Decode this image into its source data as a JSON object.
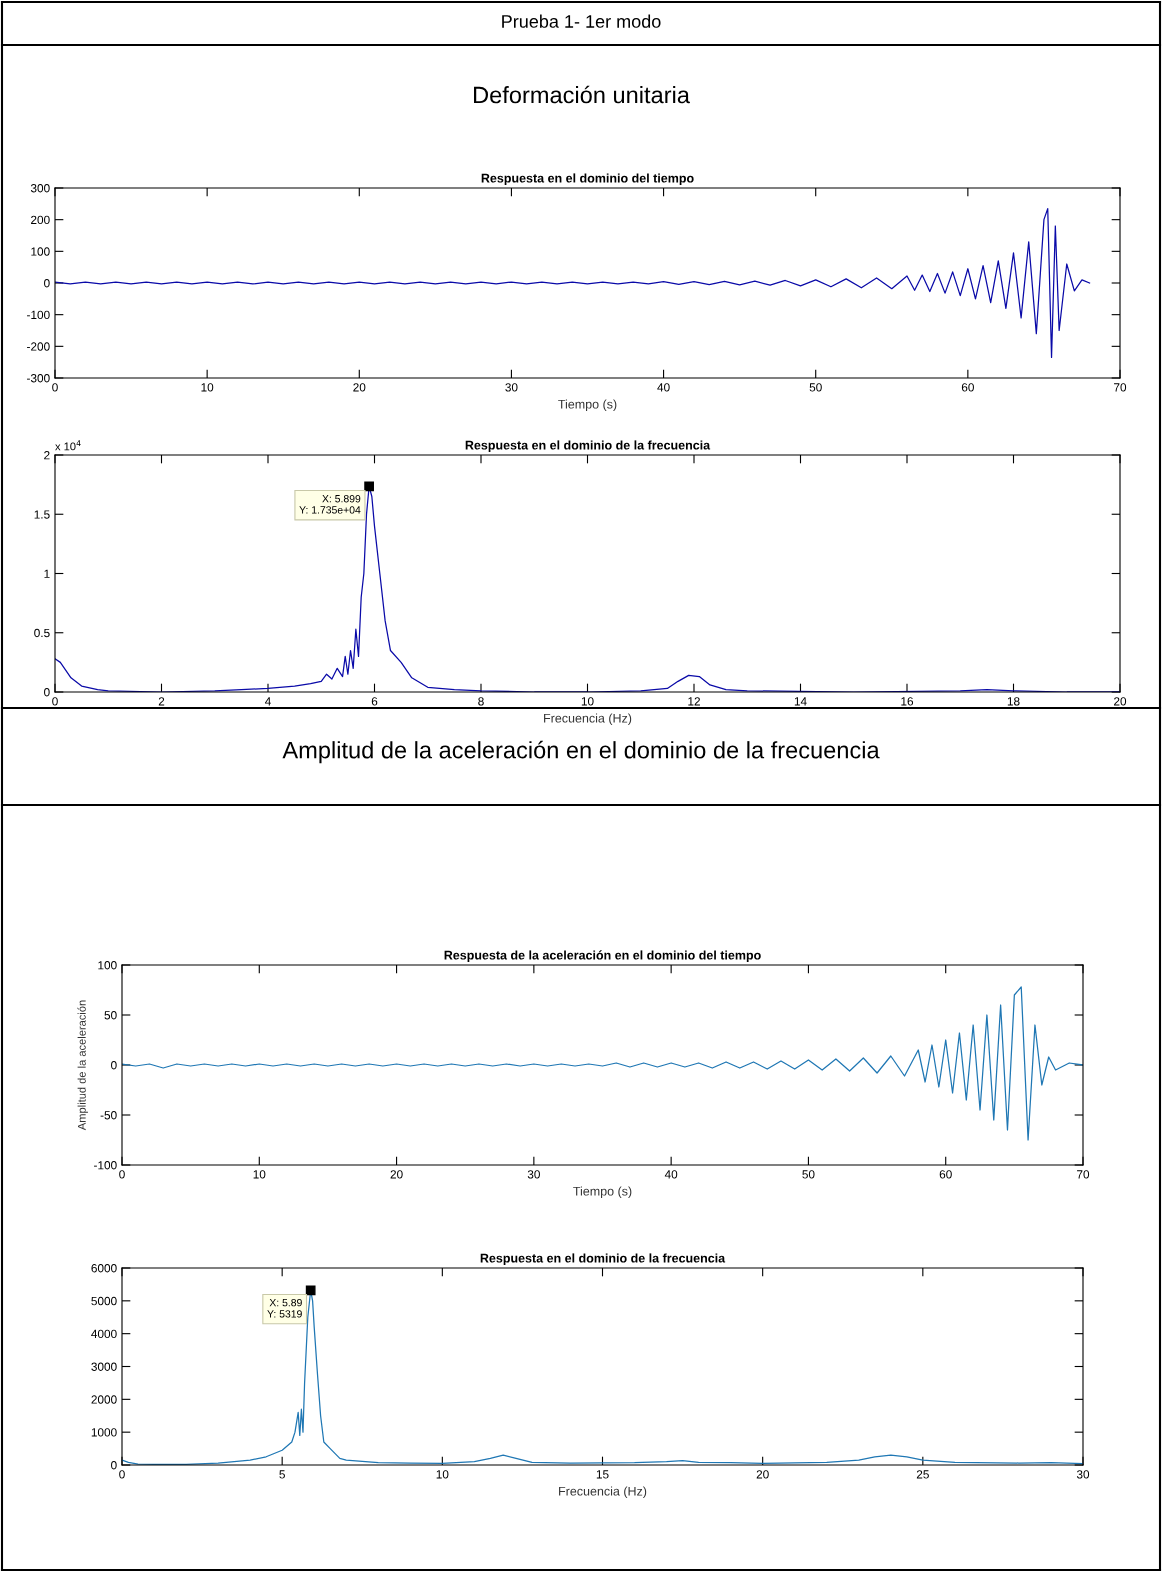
{
  "chart_data": [
    {
      "type": "line",
      "title": "Respuesta en el dominio del tiempo",
      "xlabel": "Tiempo (s)",
      "annotations": [
        "Prueba 1- 1er modo",
        "Deformación unitaria"
      ],
      "xlim": [
        0,
        70
      ],
      "ylim": [
        -300,
        300
      ],
      "xticks": [
        0,
        10,
        20,
        30,
        40,
        50,
        60,
        70
      ],
      "yticks": [
        -300,
        -200,
        -100,
        0,
        100,
        200,
        300
      ],
      "series": [
        {
          "color": "#0a0aa8",
          "x": [
            0,
            1,
            2,
            3,
            4,
            5,
            6,
            7,
            8,
            9,
            10,
            11,
            12,
            13,
            14,
            15,
            16,
            17,
            18,
            19,
            20,
            21,
            22,
            23,
            24,
            25,
            26,
            27,
            28,
            29,
            30,
            31,
            32,
            33,
            34,
            35,
            36,
            37,
            38,
            39,
            40,
            41,
            42,
            43,
            44,
            45,
            46,
            47,
            48,
            49,
            50,
            51,
            52,
            53,
            54,
            55,
            56,
            56.5,
            57,
            57.5,
            58,
            58.5,
            59,
            59.5,
            60,
            60.5,
            61,
            61.5,
            62,
            62.5,
            63,
            63.5,
            64,
            64.5,
            65,
            65.25,
            65.5,
            65.75,
            66,
            66.5,
            67,
            67.5,
            68
          ],
          "values": [
            3,
            -3,
            3,
            -3,
            3,
            -3,
            3,
            -3,
            3,
            -3,
            3,
            -3,
            3,
            -3,
            3,
            -3,
            3,
            -3,
            3,
            -3,
            3,
            -3,
            3,
            -3,
            3,
            -3,
            3,
            -3,
            3,
            -3,
            3,
            -3,
            3,
            -3,
            3,
            -3,
            3,
            -3,
            3,
            -3,
            4,
            -4,
            4,
            -5,
            5,
            -6,
            6,
            -7,
            8,
            -9,
            10,
            -12,
            13,
            -15,
            16,
            -18,
            22,
            -23,
            25,
            -27,
            30,
            -32,
            35,
            -40,
            45,
            -50,
            55,
            -62,
            70,
            -80,
            95,
            -110,
            130,
            -160,
            200,
            235,
            -235,
            180,
            -150,
            60,
            -25,
            10,
            0
          ]
        }
      ]
    },
    {
      "type": "line",
      "title": "Respuesta en el dominio de la frecuencia",
      "xlabel": "Frecuencia (Hz)",
      "annotations": [
        "x 10$^{4}$",
        {
          "text": "X: 5.899\nY: 1.735e+04",
          "x": 5.899,
          "y": 1.735
        }
      ],
      "xlim": [
        0,
        20
      ],
      "ylim": [
        0,
        2
      ],
      "xticks": [
        0,
        2,
        4,
        6,
        8,
        10,
        12,
        14,
        16,
        18,
        20
      ],
      "yticks": [
        0,
        0.5,
        1,
        1.5,
        2
      ],
      "series": [
        {
          "color": "#0a0aa8",
          "x": [
            0,
            0.1,
            0.3,
            0.5,
            0.8,
            1,
            2,
            3,
            3.5,
            4,
            4.5,
            4.8,
            5,
            5.1,
            5.2,
            5.3,
            5.4,
            5.45,
            5.5,
            5.55,
            5.6,
            5.65,
            5.7,
            5.75,
            5.8,
            5.85,
            5.899,
            5.95,
            6.0,
            6.1,
            6.2,
            6.3,
            6.5,
            6.7,
            7,
            7.5,
            8,
            9,
            10,
            11,
            11.5,
            11.7,
            11.9,
            12.1,
            12.3,
            12.6,
            13,
            15,
            17,
            17.5,
            18,
            19,
            20
          ],
          "values": [
            0.28,
            0.25,
            0.12,
            0.05,
            0.02,
            0.01,
            0,
            0.01,
            0.02,
            0.03,
            0.05,
            0.07,
            0.09,
            0.15,
            0.11,
            0.2,
            0.13,
            0.3,
            0.15,
            0.35,
            0.2,
            0.53,
            0.3,
            0.8,
            1,
            1.5,
            1.735,
            1.65,
            1.4,
            1,
            0.6,
            0.35,
            0.25,
            0.12,
            0.04,
            0.02,
            0.01,
            0,
            0,
            0.01,
            0.03,
            0.09,
            0.14,
            0.13,
            0.06,
            0.02,
            0.01,
            0,
            0.01,
            0.02,
            0.01,
            0,
            0
          ]
        }
      ]
    },
    {
      "type": "line",
      "title": "Respuesta de la aceleración en el dominio del tiempo",
      "xlabel": "Tiempo (s)",
      "ylabel": "Amplitud de la aceleración",
      "annotations": [
        "Amplitud de la aceleración en el dominio de la frecuencia"
      ],
      "xlim": [
        0,
        70
      ],
      "ylim": [
        -100,
        100
      ],
      "xticks": [
        0,
        10,
        20,
        30,
        40,
        50,
        60,
        70
      ],
      "yticks": [
        -100,
        -50,
        0,
        50,
        100
      ],
      "series": [
        {
          "color": "#1f77b4",
          "x": [
            0,
            1,
            2,
            3,
            4,
            5,
            6,
            7,
            8,
            9,
            10,
            11,
            12,
            13,
            14,
            15,
            16,
            17,
            18,
            19,
            20,
            21,
            22,
            23,
            24,
            25,
            26,
            27,
            28,
            29,
            30,
            31,
            32,
            33,
            34,
            35,
            36,
            37,
            38,
            39,
            40,
            41,
            42,
            43,
            44,
            45,
            46,
            47,
            48,
            49,
            50,
            51,
            52,
            53,
            54,
            55,
            56,
            57,
            58,
            58.5,
            59,
            59.5,
            60,
            60.5,
            61,
            61.5,
            62,
            62.5,
            63,
            63.5,
            64,
            64.5,
            65,
            65.5,
            66,
            66.5,
            67,
            67.5,
            68,
            69,
            70
          ],
          "values": [
            1,
            -1,
            1,
            -3,
            1,
            -1,
            1,
            -1,
            1,
            -1,
            1,
            -1,
            1,
            -1,
            1,
            -1,
            1,
            -1,
            1,
            -1,
            1,
            -1,
            1,
            -1,
            1,
            -1,
            1,
            -1,
            1,
            -1,
            1,
            -1,
            1,
            -1,
            1,
            -1,
            2,
            -2,
            2,
            -2,
            2,
            -2,
            2,
            -3,
            3,
            -3,
            3,
            -4,
            4,
            -4,
            5,
            -5,
            6,
            -6,
            7,
            -8,
            9,
            -11,
            15,
            -17,
            20,
            -22,
            25,
            -28,
            32,
            -35,
            40,
            -45,
            50,
            -55,
            60,
            -65,
            70,
            78,
            -75,
            40,
            -20,
            8,
            -5,
            2,
            0
          ]
        }
      ]
    },
    {
      "type": "line",
      "title": "Respuesta en el dominio de la frecuencia",
      "xlabel": "Frecuencia (Hz)",
      "annotations": [
        {
          "text": "X: 5.89\nY: 5319",
          "x": 5.89,
          "y": 5319
        }
      ],
      "xlim": [
        0,
        30
      ],
      "ylim": [
        0,
        6000
      ],
      "xticks": [
        0,
        5,
        10,
        15,
        20,
        25,
        30
      ],
      "yticks": [
        0,
        1000,
        2000,
        3000,
        4000,
        5000,
        6000
      ],
      "series": [
        {
          "color": "#1f77b4",
          "x": [
            0,
            0.2,
            0.5,
            1,
            2,
            3,
            4,
            4.5,
            5,
            5.3,
            5.4,
            5.5,
            5.55,
            5.6,
            5.65,
            5.7,
            5.8,
            5.89,
            5.95,
            6.0,
            6.1,
            6.2,
            6.3,
            6.5,
            6.8,
            7,
            8,
            9,
            10,
            11,
            11.5,
            11.9,
            12.3,
            12.8,
            14,
            16,
            17,
            17.5,
            18,
            19,
            20,
            22,
            23,
            23.5,
            24,
            24.5,
            25,
            26,
            28,
            29,
            30
          ],
          "values": [
            150,
            80,
            30,
            20,
            20,
            60,
            150,
            250,
            450,
            700,
            1000,
            1600,
            900,
            1700,
            1000,
            2500,
            4500,
            5319,
            5000,
            4200,
            2800,
            1500,
            700,
            500,
            200,
            150,
            70,
            60,
            50,
            100,
            200,
            300,
            200,
            80,
            60,
            70,
            100,
            130,
            80,
            70,
            50,
            80,
            150,
            250,
            300,
            250,
            150,
            80,
            60,
            70,
            40
          ]
        }
      ]
    }
  ]
}
